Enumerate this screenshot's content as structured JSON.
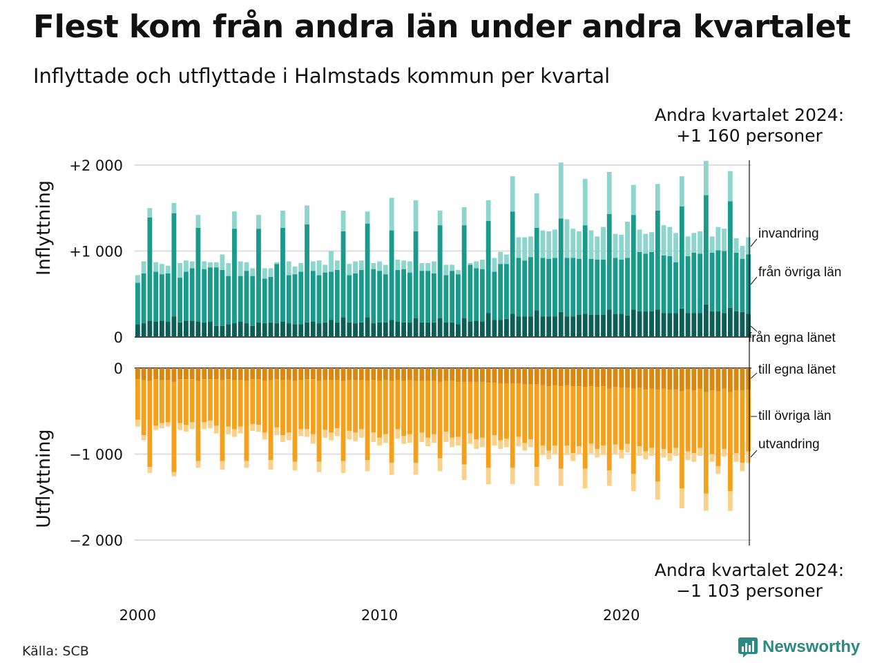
{
  "title": "Flest kom från andra län under andra kvartalet",
  "subtitle": "Inflyttade och utflyttade i Halmstads kommun per kvartal",
  "source": "Källa: SCB",
  "logo_text": "Newsworthy",
  "colors": {
    "in_own": "#0d5e57",
    "in_other": "#1a9a8b",
    "in_immig": "#8dd5cd",
    "out_own": "#d9870f",
    "out_other": "#f5a01a",
    "out_emig": "#fbd089",
    "grid": "#dddddd",
    "axis": "#111111",
    "logo": "#2a8a80"
  },
  "annotations": {
    "top_line1": "Andra kvartalet 2024:",
    "top_line2": "+1 160 personer",
    "bottom_line1": "Andra kvartalet 2024:",
    "bottom_line2": "−1 103 personer"
  },
  "chart_data": [
    {
      "type": "bar",
      "stacked": true,
      "ylabel": "Inflyttning",
      "ylim": [
        0,
        2050
      ],
      "yticks": [
        0,
        1000,
        2000
      ],
      "ytick_labels": [
        "0",
        "+1 000",
        "+2 000"
      ],
      "xtick_labels": [
        "2000",
        "2010",
        "2020"
      ],
      "x_start": "2000 Q1",
      "x_end": "2024 Q2",
      "grid": true,
      "series_labels": [
        "från egna länet",
        "från övriga län",
        "invandring"
      ],
      "totals": [
        720,
        880,
        1500,
        870,
        850,
        830,
        1560,
        860,
        890,
        880,
        1420,
        880,
        870,
        870,
        960,
        860,
        1460,
        880,
        870,
        800,
        1420,
        800,
        800,
        870,
        1470,
        880,
        820,
        860,
        1530,
        880,
        890,
        840,
        1000,
        890,
        1470,
        850,
        880,
        890,
        1460,
        860,
        880,
        840,
        1620,
        900,
        890,
        880,
        1590,
        860,
        860,
        880,
        1470,
        840,
        840,
        780,
        1510,
        860,
        880,
        900,
        1590,
        920,
        990,
        960,
        1870,
        1160,
        1160,
        1170,
        1670,
        1240,
        1230,
        1250,
        2030,
        1370,
        1260,
        1230,
        1840,
        1240,
        1170,
        1280,
        1920,
        1200,
        1190,
        1340,
        1770,
        1250,
        1200,
        1220,
        1780,
        1300,
        1280,
        1210,
        1870,
        1170,
        1210,
        1230,
        2050,
        1170,
        1280,
        1260,
        1930,
        1150,
        1060,
        1160
      ],
      "own_county": [
        150,
        160,
        190,
        180,
        190,
        180,
        240,
        170,
        190,
        190,
        180,
        170,
        180,
        130,
        130,
        150,
        160,
        180,
        160,
        130,
        170,
        160,
        170,
        160,
        180,
        160,
        150,
        150,
        170,
        180,
        160,
        170,
        200,
        170,
        230,
        170,
        160,
        170,
        230,
        160,
        170,
        170,
        200,
        180,
        170,
        170,
        220,
        170,
        170,
        170,
        220,
        170,
        170,
        150,
        220,
        180,
        190,
        180,
        280,
        200,
        200,
        210,
        270,
        240,
        240,
        240,
        310,
        240,
        240,
        240,
        290,
        240,
        240,
        260,
        270,
        260,
        260,
        260,
        320,
        270,
        270,
        250,
        320,
        300,
        300,
        300,
        320,
        280,
        280,
        280,
        330,
        280,
        280,
        280,
        380,
        300,
        300,
        280,
        340,
        300,
        290,
        270
      ],
      "other_counties": [
        480,
        580,
        1200,
        580,
        540,
        560,
        1200,
        520,
        570,
        610,
        1090,
        620,
        630,
        680,
        650,
        560,
        1100,
        530,
        610,
        580,
        1090,
        520,
        530,
        690,
        1090,
        560,
        580,
        610,
        1140,
        590,
        560,
        580,
        560,
        610,
        1000,
        550,
        580,
        610,
        1090,
        630,
        600,
        560,
        1040,
        600,
        620,
        580,
        1010,
        600,
        600,
        570,
        1080,
        550,
        600,
        580,
        1080,
        660,
        610,
        610,
        1070,
        560,
        650,
        640,
        1190,
        680,
        650,
        690,
        960,
        680,
        670,
        680,
        1090,
        680,
        680,
        650,
        1030,
        650,
        640,
        640,
        1110,
        650,
        630,
        670,
        1100,
        690,
        670,
        690,
        1150,
        670,
        660,
        590,
        1190,
        660,
        700,
        690,
        1270,
        680,
        710,
        720,
        1240,
        680,
        620,
        690
      ]
    },
    {
      "type": "bar",
      "stacked": true,
      "ylabel": "Utflyttning",
      "ylim": [
        -2050,
        0
      ],
      "yticks": [
        -2000,
        -1000,
        0
      ],
      "ytick_labels": [
        "−2 000",
        "−1 000",
        "0"
      ],
      "xtick_labels": [
        "2000",
        "2010",
        "2020"
      ],
      "x_start": "2000 Q1",
      "x_end": "2024 Q2",
      "grid": true,
      "series_labels": [
        "till egna länet",
        "till övriga län",
        "utvandring"
      ],
      "totals": [
        -680,
        -840,
        -1220,
        -720,
        -700,
        -680,
        -1260,
        -720,
        -740,
        -710,
        -1160,
        -710,
        -700,
        -760,
        -1180,
        -770,
        -800,
        -760,
        -1160,
        -730,
        -740,
        -830,
        -1180,
        -780,
        -860,
        -840,
        -1190,
        -790,
        -800,
        -880,
        -1210,
        -810,
        -840,
        -790,
        -1220,
        -830,
        -850,
        -810,
        -1200,
        -860,
        -900,
        -870,
        -1240,
        -820,
        -880,
        -870,
        -1240,
        -860,
        -910,
        -870,
        -1200,
        -860,
        -920,
        -900,
        -1300,
        -880,
        -940,
        -920,
        -1350,
        -900,
        -940,
        -920,
        -1350,
        -910,
        -960,
        -920,
        -1370,
        -1010,
        -1060,
        -1000,
        -1370,
        -1010,
        -1080,
        -1000,
        -1400,
        -990,
        -1040,
        -1010,
        -1370,
        -1000,
        -1050,
        -980,
        -1430,
        -1020,
        -1060,
        -1020,
        -1530,
        -1040,
        -1080,
        -1020,
        -1630,
        -1070,
        -1090,
        -1020,
        -1660,
        -1090,
        -1230,
        -1030,
        -1660,
        -1090,
        -1200,
        -1103
      ],
      "own_county": [
        -130,
        -140,
        -150,
        -130,
        -140,
        -140,
        -160,
        -130,
        -130,
        -130,
        -150,
        -130,
        -130,
        -130,
        -140,
        -130,
        -140,
        -140,
        -150,
        -130,
        -130,
        -150,
        -140,
        -130,
        -140,
        -140,
        -150,
        -140,
        -130,
        -130,
        -150,
        -140,
        -140,
        -140,
        -150,
        -140,
        -140,
        -140,
        -150,
        -140,
        -150,
        -140,
        -150,
        -140,
        -150,
        -140,
        -150,
        -150,
        -150,
        -150,
        -160,
        -150,
        -150,
        -160,
        -160,
        -160,
        -160,
        -160,
        -170,
        -170,
        -180,
        -180,
        -180,
        -180,
        -190,
        -190,
        -190,
        -200,
        -210,
        -200,
        -210,
        -200,
        -210,
        -210,
        -220,
        -210,
        -220,
        -210,
        -240,
        -220,
        -230,
        -230,
        -240,
        -230,
        -250,
        -240,
        -250,
        -240,
        -250,
        -250,
        -270,
        -250,
        -260,
        -240,
        -280,
        -260,
        -270,
        -240,
        -280,
        -260,
        -260,
        -250
      ],
      "other_counties": [
        -470,
        -640,
        -1000,
        -540,
        -500,
        -490,
        -1050,
        -510,
        -530,
        -500,
        -930,
        -500,
        -480,
        -540,
        -940,
        -550,
        -570,
        -540,
        -930,
        -520,
        -530,
        -600,
        -930,
        -560,
        -640,
        -610,
        -940,
        -570,
        -580,
        -640,
        -940,
        -580,
        -610,
        -560,
        -930,
        -590,
        -610,
        -570,
        -920,
        -610,
        -660,
        -630,
        -950,
        -570,
        -640,
        -630,
        -950,
        -600,
        -660,
        -620,
        -890,
        -590,
        -660,
        -640,
        -960,
        -600,
        -670,
        -650,
        -990,
        -610,
        -660,
        -640,
        -980,
        -620,
        -680,
        -640,
        -960,
        -700,
        -750,
        -700,
        -960,
        -700,
        -780,
        -700,
        -950,
        -670,
        -720,
        -690,
        -950,
        -670,
        -720,
        -650,
        -990,
        -680,
        -720,
        -690,
        -1070,
        -700,
        -740,
        -680,
        -1130,
        -720,
        -730,
        -690,
        -1180,
        -740,
        -870,
        -700,
        -1150,
        -730,
        -840,
        -720
      ]
    }
  ]
}
